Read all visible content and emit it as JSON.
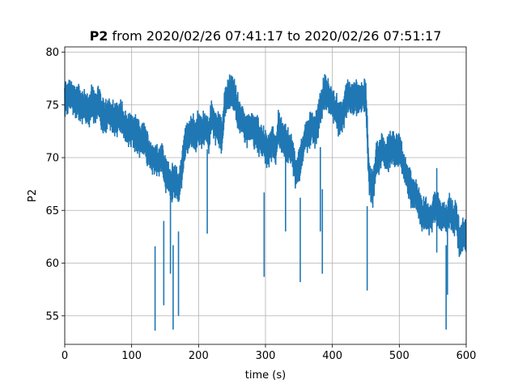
{
  "chart_data": {
    "type": "line",
    "title": {
      "bold": "P2",
      "rest": " from 2020/02/26 07:41:17 to 2020/02/26 07:51:17"
    },
    "xlabel": "time (s)",
    "ylabel": "P2",
    "xlim": [
      0,
      600
    ],
    "ylim": [
      52.3,
      80.5
    ],
    "xticks": [
      0,
      100,
      200,
      300,
      400,
      500,
      600
    ],
    "yticks": [
      55,
      60,
      65,
      70,
      75,
      80
    ],
    "grid": true,
    "series": [
      {
        "color": "#1f77b4",
        "x": [
          0,
          5,
          10,
          15,
          20,
          25,
          30,
          35,
          40,
          45,
          50,
          55,
          60,
          65,
          70,
          75,
          80,
          85,
          90,
          95,
          100,
          105,
          110,
          115,
          120,
          125,
          130,
          135,
          140,
          145,
          150,
          155,
          160,
          165,
          170,
          175,
          180,
          185,
          190,
          195,
          200,
          205,
          210,
          215,
          220,
          225,
          230,
          235,
          240,
          245,
          250,
          255,
          260,
          265,
          270,
          275,
          280,
          285,
          290,
          295,
          300,
          305,
          310,
          315,
          320,
          325,
          330,
          335,
          340,
          345,
          350,
          355,
          360,
          365,
          370,
          375,
          380,
          385,
          390,
          395,
          400,
          405,
          410,
          415,
          420,
          425,
          430,
          435,
          440,
          445,
          450,
          455,
          460,
          465,
          470,
          475,
          480,
          485,
          490,
          495,
          500,
          505,
          510,
          515,
          520,
          525,
          530,
          535,
          540,
          545,
          550,
          555,
          560,
          565,
          570,
          575,
          580,
          585,
          590,
          595,
          600
        ],
        "y": [
          75.5,
          76.0,
          75.8,
          75.2,
          75.5,
          74.8,
          75.0,
          74.5,
          75.2,
          74.8,
          75.5,
          74.0,
          73.8,
          74.2,
          74.0,
          73.5,
          74.0,
          73.8,
          73.0,
          72.5,
          73.0,
          72.2,
          72.0,
          71.5,
          71.8,
          70.5,
          70.0,
          69.8,
          69.5,
          70.0,
          68.5,
          68.0,
          67.5,
          68.0,
          67.0,
          69.0,
          71.5,
          72.0,
          72.5,
          72.0,
          73.0,
          72.5,
          73.0,
          72.0,
          74.0,
          73.0,
          72.5,
          72.0,
          75.5,
          76.0,
          76.5,
          75.5,
          74.0,
          73.8,
          72.5,
          73.0,
          72.8,
          72.5,
          72.0,
          71.5,
          71.0,
          70.5,
          71.5,
          70.5,
          73.0,
          72.0,
          71.5,
          71.0,
          70.5,
          68.5,
          69.0,
          70.5,
          72.0,
          72.5,
          73.0,
          72.5,
          74.0,
          75.5,
          76.5,
          75.5,
          75.0,
          74.5,
          73.5,
          74.0,
          75.5,
          76.0,
          75.5,
          75.8,
          75.5,
          76.0,
          75.5,
          68.0,
          67.0,
          69.5,
          70.0,
          71.0,
          70.0,
          70.5,
          71.0,
          70.5,
          71.0,
          69.5,
          68.5,
          67.5,
          66.5,
          66.5,
          65.5,
          64.5,
          64.5,
          64.0,
          65.0,
          65.5,
          64.5,
          64.5,
          64.0,
          65.0,
          64.0,
          64.5,
          62.0,
          62.5,
          63.0
        ]
      }
    ]
  }
}
